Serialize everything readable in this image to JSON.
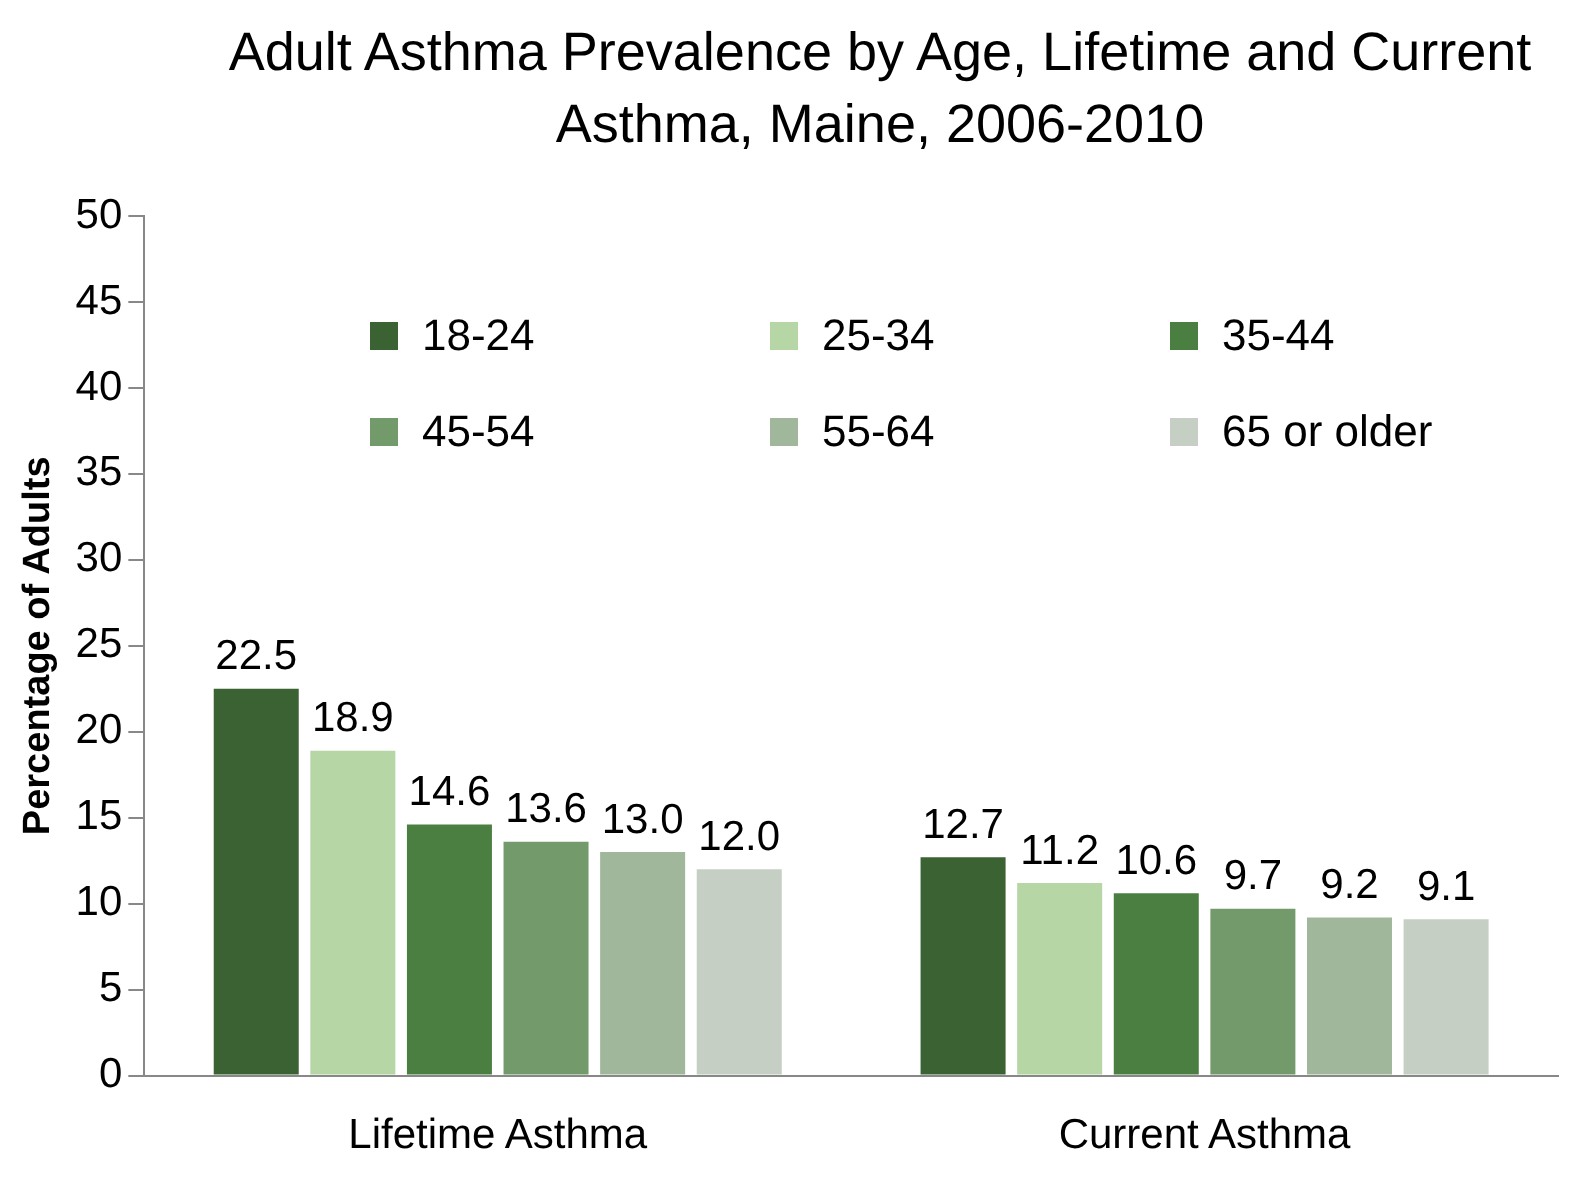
{
  "chart_data": {
    "type": "bar",
    "title": "Adult Asthma Prevalence by Age, Lifetime and Current Asthma, Maine, 2006-2010",
    "ylabel": "Percentage of Adults",
    "categories": [
      "Lifetime Asthma",
      "Current Asthma"
    ],
    "series": [
      {
        "name": "18-24",
        "color": "#3b6233",
        "values": [
          22.5,
          12.7
        ]
      },
      {
        "name": "25-34",
        "color": "#b6d6a6",
        "values": [
          18.9,
          11.2
        ]
      },
      {
        "name": "35-44",
        "color": "#4b7f41",
        "values": [
          14.6,
          10.6
        ]
      },
      {
        "name": "45-54",
        "color": "#739a6b",
        "values": [
          13.6,
          9.7
        ]
      },
      {
        "name": "55-64",
        "color": "#a0b79b",
        "values": [
          13.0,
          9.2
        ]
      },
      {
        "name": "65 or older",
        "color": "#c5cfc3",
        "values": [
          12.0,
          9.1
        ]
      }
    ],
    "value_labels": [
      [
        "22.5",
        "12.7"
      ],
      [
        "18.9",
        "11.2"
      ],
      [
        "14.6",
        "10.6"
      ],
      [
        "13.6",
        "9.7"
      ],
      [
        "13.0",
        "9.2"
      ],
      [
        "12.0",
        "9.1"
      ]
    ],
    "ylim": [
      0,
      50
    ],
    "yticks": [
      0,
      5,
      10,
      15,
      20,
      25,
      30,
      35,
      40,
      45,
      50
    ],
    "grid": false,
    "legend": "top"
  }
}
